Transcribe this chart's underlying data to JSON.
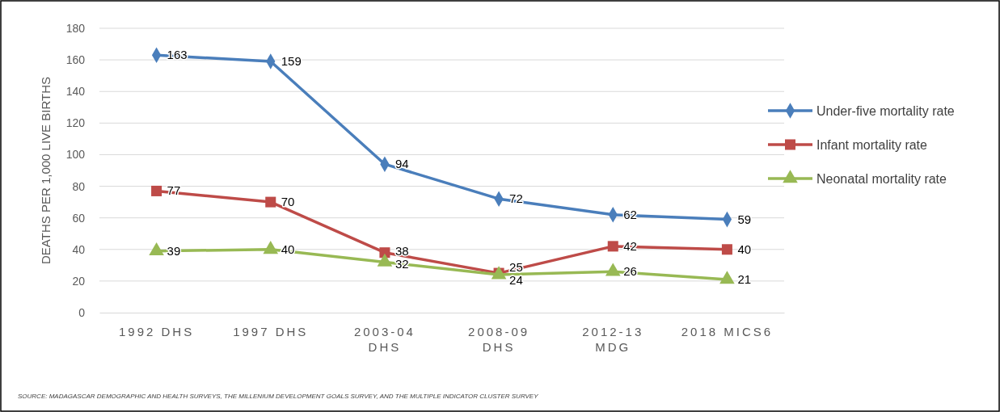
{
  "chart_data": {
    "type": "line",
    "ylabel": "DEATHS PER 1,000 LIVE BIRTHS",
    "categories": [
      "1992 DHS",
      "1997 DHS",
      "2003-04 DHS",
      "2008-09 DHS",
      "2012-13 MDG",
      "2018 MICS6"
    ],
    "series": [
      {
        "name": "Under-five mortality rate",
        "color": "#4a7ebb",
        "marker": "diamond",
        "values": [
          163,
          159,
          94,
          72,
          62,
          59
        ]
      },
      {
        "name": "Infant mortality rate",
        "color": "#be4b48",
        "marker": "square",
        "values": [
          77,
          70,
          38,
          25,
          42,
          40
        ]
      },
      {
        "name": "Neonatal mortality rate",
        "color": "#98b954",
        "marker": "triangle",
        "values": [
          39,
          40,
          32,
          24,
          26,
          21
        ]
      }
    ],
    "ylim": [
      0,
      180
    ],
    "yticks": [
      0,
      20,
      40,
      60,
      80,
      100,
      120,
      140,
      160,
      180
    ],
    "grid": "y",
    "legend": "right",
    "data_labels": true,
    "annotations": [
      "SOURCE: MADAGASCAR DEMOGRAPHIC AND HEALTH SURVEYS, THE MILLENIUM DEVELOPMENT GOALS SURVEY, AND THE MULTIPLE INDICATOR CLUSTER SURVEY"
    ]
  }
}
